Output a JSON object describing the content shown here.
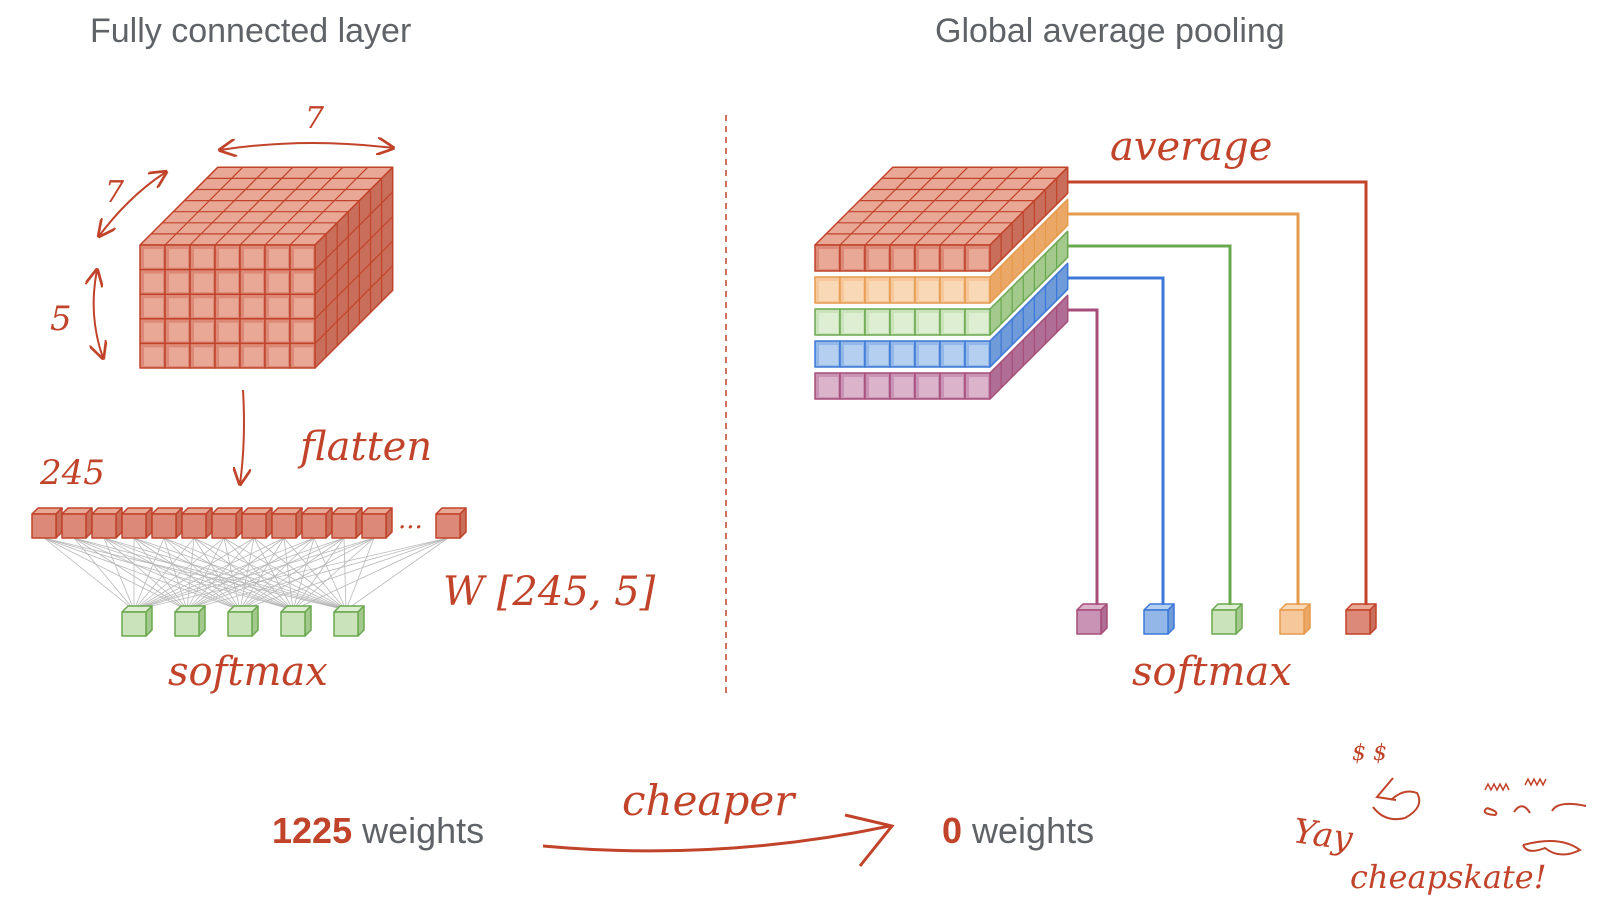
{
  "left": {
    "title": "Fully connected layer",
    "dim_width": "7",
    "dim_depth": "7",
    "dim_height": "5",
    "flatten_label": "flatten",
    "flatten_count": "245",
    "ellipsis": "...",
    "weights_matrix": "W [245, 5]",
    "softmax_label": "softmax",
    "weight_count": "1225",
    "weight_unit": "weights"
  },
  "right": {
    "title": "Global average pooling",
    "average_label": "average",
    "softmax_label": "softmax",
    "weight_count": "0",
    "weight_unit": "weights"
  },
  "comparison_label": "cheaper",
  "doodle": {
    "yay": "Yay",
    "cheapskate": "cheapskate!",
    "dollar_eyes": "$ $"
  },
  "colors": {
    "red": "#c0432a",
    "orange": "#e69a4c",
    "green": "#6aa84f",
    "blue": "#3c78d8",
    "purple": "#a64d79",
    "text_gray": "#5f6368"
  }
}
